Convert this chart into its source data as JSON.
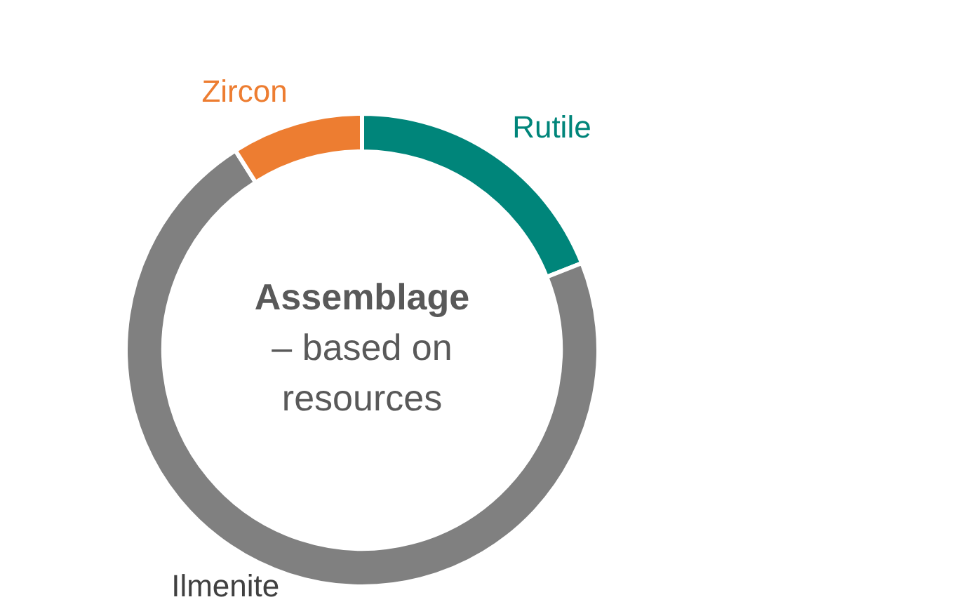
{
  "chart_data": {
    "type": "donut",
    "title": "Assemblage",
    "subtitle": "– based on resources",
    "categories": [
      "Rutile",
      "Ilmenite",
      "Zircon"
    ],
    "values": [
      19,
      72,
      9
    ],
    "colors": [
      "#00857a",
      "#808080",
      "#ed7d31"
    ],
    "legend": false
  }
}
